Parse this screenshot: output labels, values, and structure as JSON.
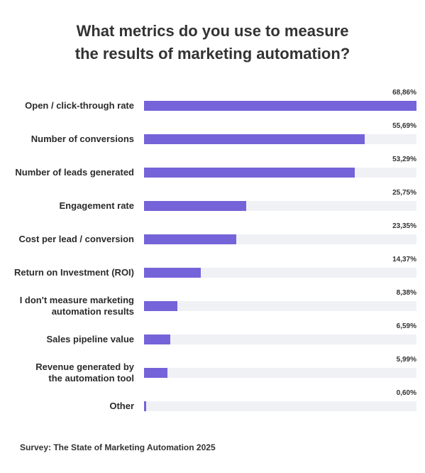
{
  "title_lines": [
    "What metrics do you use to measure",
    "the results of marketing automation?"
  ],
  "source": "Survey: The State of Marketing Automation 2025",
  "colors": {
    "bar": "#7563d9",
    "track": "#f0f1f5",
    "text": "#2b2b2b"
  },
  "chart_data": {
    "type": "bar",
    "orientation": "horizontal",
    "title": "What metrics do you use to measure the results of marketing automation?",
    "xlim": [
      0,
      68.86
    ],
    "grid": false,
    "legend": "none",
    "categories": [
      "Open / click-through rate",
      "Number of conversions",
      "Number of leads generated",
      "Engagement rate",
      "Cost per lead / conversion",
      "Return on Investment (ROI)",
      "I don't measure marketing automation results",
      "Sales pipeline value",
      "Revenue generated by the automation tool",
      "Other"
    ],
    "category_lines": [
      [
        "Open / click-through rate"
      ],
      [
        "Number of conversions"
      ],
      [
        "Number of leads generated"
      ],
      [
        "Engagement rate"
      ],
      [
        "Cost per lead / conversion"
      ],
      [
        "Return on Investment (ROI)"
      ],
      [
        "I don't measure marketing",
        "automation results"
      ],
      [
        "Sales pipeline value"
      ],
      [
        "Revenue generated by",
        "the automation tool"
      ],
      [
        "Other"
      ]
    ],
    "values": [
      68.86,
      55.69,
      53.29,
      25.75,
      23.35,
      14.37,
      8.38,
      6.59,
      5.99,
      0.6
    ],
    "value_labels": [
      "68,86%",
      "55,69%",
      "53,29%",
      "25,75%",
      "23,35%",
      "14,37%",
      "8,38%",
      "6,59%",
      "5,99%",
      "0,60%"
    ]
  }
}
